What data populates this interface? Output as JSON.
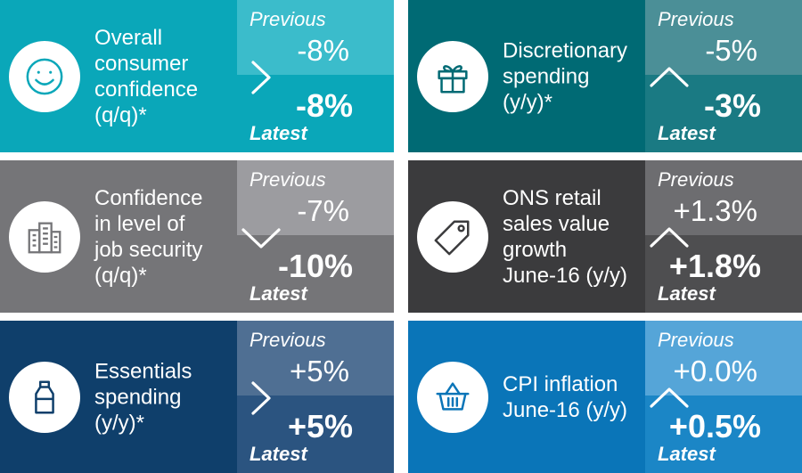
{
  "labels": {
    "previous": "Previous",
    "latest": "Latest"
  },
  "tiles": [
    {
      "id": "consumer-confidence",
      "lines": [
        "Overall",
        "consumer",
        "confidence",
        "(q/q)*"
      ],
      "previous": "-8%",
      "latest": "-8%",
      "trend": "flat",
      "icon": "smiley-icon",
      "colors": {
        "left": "#0aa7b9",
        "prev": "#3bbccb",
        "latest": "#0aa7b9"
      }
    },
    {
      "id": "discretionary-spending",
      "lines": [
        "Discretionary",
        "spending",
        "(y/y)*"
      ],
      "previous": "-5%",
      "latest": "-3%",
      "trend": "up",
      "icon": "gift-icon",
      "colors": {
        "left": "#006a74",
        "prev": "#4b8f97",
        "latest": "#1a7a83"
      }
    },
    {
      "id": "job-security",
      "lines": [
        "Confidence",
        "in level of",
        "job security",
        "(q/q)*"
      ],
      "previous": "-7%",
      "latest": "-10%",
      "trend": "down",
      "icon": "building-icon",
      "colors": {
        "left": "#757578",
        "prev": "#9c9ca0",
        "latest": "#757578"
      }
    },
    {
      "id": "ons-retail-sales",
      "lines": [
        "ONS retail",
        "sales value",
        "growth",
        "June-16 (y/y)"
      ],
      "previous": "+1.3%",
      "latest": "+1.8%",
      "trend": "up",
      "icon": "price-tag-icon",
      "colors": {
        "left": "#3b3b3d",
        "prev": "#6d6d70",
        "latest": "#4e4e50"
      }
    },
    {
      "id": "essentials-spending",
      "lines": [
        "Essentials",
        "spending",
        "(y/y)*"
      ],
      "previous": "+5%",
      "latest": "+5%",
      "trend": "flat",
      "icon": "bottle-icon",
      "colors": {
        "left": "#0f3f6b",
        "prev": "#4f6f93",
        "latest": "#2b5480"
      }
    },
    {
      "id": "cpi-inflation",
      "lines": [
        "CPI inflation",
        "June-16 (y/y)"
      ],
      "previous": "+0.0%",
      "latest": "+0.5%",
      "trend": "up",
      "icon": "basket-icon",
      "colors": {
        "left": "#0a75b8",
        "prev": "#55a5d8",
        "latest": "#1b86c6"
      }
    }
  ]
}
